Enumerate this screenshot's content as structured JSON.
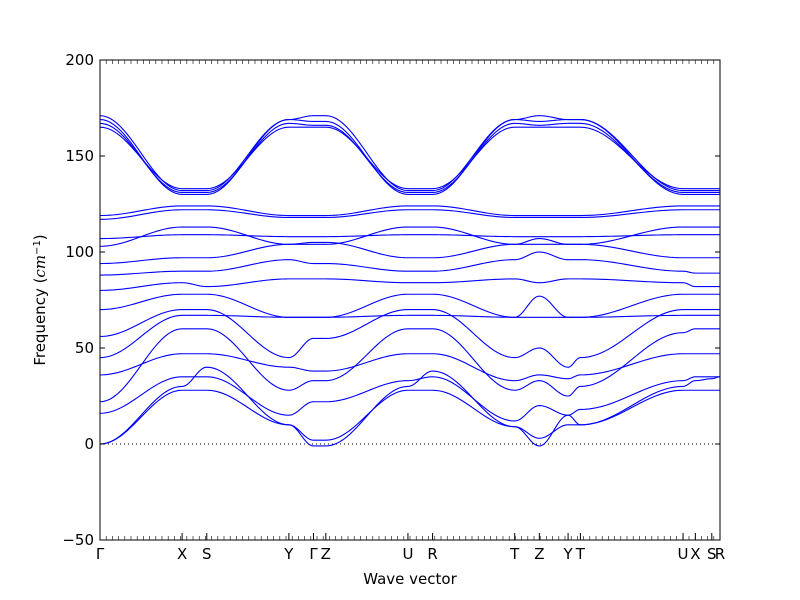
{
  "chart_data": {
    "type": "line",
    "title": "",
    "xlabel": "Wave vector",
    "ylabel_text": "Frequency (",
    "ylabel_unit": "cm",
    "ylabel_exp": "−1",
    "ylabel_close": ")",
    "ylim": [
      -50,
      200
    ],
    "yticks": [
      -50,
      0,
      50,
      100,
      150,
      200
    ],
    "ytick_labels": [
      "−50",
      "0",
      "50",
      "100",
      "150",
      "200"
    ],
    "xlim": [
      0,
      15.1
    ],
    "x_high_symmetry": [
      {
        "label": "Γ",
        "x": 0
      },
      {
        "label": "X",
        "x": 2.0
      },
      {
        "label": "S",
        "x": 2.6
      },
      {
        "label": "Y",
        "x": 4.6
      },
      {
        "label": "Γ",
        "x": 5.2
      },
      {
        "label": "Z",
        "x": 5.5
      },
      {
        "label": "U",
        "x": 7.5
      },
      {
        "label": "R",
        "x": 8.1
      },
      {
        "label": "T",
        "x": 10.1
      },
      {
        "label": "Z",
        "x": 10.7
      },
      {
        "label": "Y",
        "x": 11.4
      },
      {
        "label": "T",
        "x": 11.7
      },
      {
        "label": "U",
        "x": 14.2
      },
      {
        "label": "X",
        "x": 14.5
      },
      {
        "label": "S",
        "x": 14.9
      },
      {
        "label": "R",
        "x": 15.1
      }
    ],
    "zero_line": 0,
    "series_color": "#0000ff",
    "series": [
      {
        "x": [
          0,
          2.0,
          2.6,
          4.6,
          5.2,
          5.5,
          7.5,
          8.1,
          10.1,
          10.7,
          11.4,
          11.7,
          14.2,
          14.5,
          14.9,
          15.1
        ],
        "values": [
          0,
          30,
          40,
          10,
          -1,
          -1,
          30,
          38,
          9,
          -1,
          15,
          10,
          30,
          33,
          34,
          35
        ]
      },
      {
        "x": [
          0,
          2.0,
          2.6,
          4.6,
          5.2,
          5.5,
          7.5,
          8.1,
          10.1,
          10.7,
          11.4,
          11.7,
          14.2,
          14.5,
          14.9,
          15.1
        ],
        "values": [
          0,
          28,
          28,
          10,
          2,
          2,
          28,
          28,
          9,
          3,
          10,
          10,
          28,
          28,
          28,
          28
        ]
      },
      {
        "x": [
          0,
          2.0,
          2.6,
          4.6,
          5.2,
          5.5,
          7.5,
          8.1,
          10.1,
          10.7,
          11.4,
          11.7,
          14.2,
          14.5,
          14.9,
          15.1
        ],
        "values": [
          16,
          35,
          35,
          15,
          22,
          22,
          33,
          35,
          12,
          20,
          15,
          18,
          33,
          35,
          35,
          35
        ]
      },
      {
        "x": [
          0,
          2.0,
          2.6,
          4.6,
          5.2,
          5.5,
          7.5,
          8.1,
          10.1,
          10.7,
          11.4,
          11.7,
          14.2,
          14.5,
          14.9,
          15.1
        ],
        "values": [
          22,
          60,
          60,
          28,
          33,
          33,
          60,
          60,
          28,
          33,
          25,
          30,
          58,
          60,
          60,
          60
        ]
      },
      {
        "x": [
          0,
          2.0,
          2.6,
          4.6,
          5.2,
          5.5,
          7.5,
          8.1,
          10.1,
          10.7,
          11.4,
          11.7,
          14.2,
          14.5,
          14.9,
          15.1
        ],
        "values": [
          36,
          47,
          47,
          40,
          38,
          38,
          47,
          47,
          33,
          36,
          34,
          36,
          47,
          47,
          47,
          47
        ]
      },
      {
        "x": [
          0,
          2.0,
          2.6,
          4.6,
          5.2,
          5.5,
          7.5,
          8.1,
          10.1,
          10.7,
          11.4,
          11.7,
          14.2,
          14.5,
          14.9,
          15.1
        ],
        "values": [
          45,
          67,
          67,
          66,
          66,
          66,
          67,
          67,
          66,
          66,
          66,
          66,
          67,
          67,
          67,
          67
        ]
      },
      {
        "x": [
          0,
          2.0,
          2.6,
          4.6,
          5.2,
          5.5,
          7.5,
          8.1,
          10.1,
          10.7,
          11.4,
          11.7,
          14.2,
          14.5,
          14.9,
          15.1
        ],
        "values": [
          56,
          70,
          70,
          45,
          55,
          55,
          70,
          70,
          45,
          50,
          40,
          45,
          70,
          70,
          70,
          70
        ]
      },
      {
        "x": [
          0,
          2.0,
          2.6,
          4.6,
          5.2,
          5.5,
          7.5,
          8.1,
          10.1,
          10.7,
          11.4,
          11.7,
          14.2,
          14.5,
          14.9,
          15.1
        ],
        "values": [
          70,
          78,
          78,
          66,
          66,
          66,
          78,
          78,
          66,
          77,
          66,
          66,
          78,
          78,
          78,
          78
        ]
      },
      {
        "x": [
          0,
          2.0,
          2.6,
          4.6,
          5.2,
          5.5,
          7.5,
          8.1,
          10.1,
          10.7,
          11.4,
          11.7,
          14.2,
          14.5,
          14.9,
          15.1
        ],
        "values": [
          80,
          84,
          82,
          86,
          86,
          86,
          84,
          84,
          86,
          84,
          86,
          86,
          84,
          82,
          82,
          82
        ]
      },
      {
        "x": [
          0,
          2.0,
          2.6,
          4.6,
          5.2,
          5.5,
          7.5,
          8.1,
          10.1,
          10.7,
          11.4,
          11.7,
          14.2,
          14.5,
          14.9,
          15.1
        ],
        "values": [
          88,
          90,
          90,
          96,
          94,
          94,
          90,
          90,
          96,
          100,
          96,
          96,
          90,
          89,
          89,
          89
        ]
      },
      {
        "x": [
          0,
          2.0,
          2.6,
          4.6,
          5.2,
          5.5,
          7.5,
          8.1,
          10.1,
          10.7,
          11.4,
          11.7,
          14.2,
          14.5,
          14.9,
          15.1
        ],
        "values": [
          94,
          97,
          97,
          104,
          105,
          105,
          97,
          97,
          104,
          107,
          104,
          104,
          97,
          97,
          97,
          97
        ]
      },
      {
        "x": [
          0,
          2.0,
          2.6,
          4.6,
          5.2,
          5.5,
          7.5,
          8.1,
          10.1,
          10.7,
          11.4,
          11.7,
          14.2,
          14.5,
          14.9,
          15.1
        ],
        "values": [
          103,
          113,
          113,
          104,
          104,
          104,
          113,
          113,
          104,
          104,
          104,
          104,
          113,
          113,
          113,
          113
        ]
      },
      {
        "x": [
          0,
          2.0,
          2.6,
          4.6,
          5.2,
          5.5,
          7.5,
          8.1,
          10.1,
          10.7,
          11.4,
          11.7,
          14.2,
          14.5,
          14.9,
          15.1
        ],
        "values": [
          107,
          109,
          109,
          108,
          108,
          108,
          109,
          109,
          108,
          108,
          108,
          108,
          109,
          109,
          109,
          109
        ]
      },
      {
        "x": [
          0,
          2.0,
          2.6,
          4.6,
          5.2,
          5.5,
          7.5,
          8.1,
          10.1,
          10.7,
          11.4,
          11.7,
          14.2,
          14.5,
          14.9,
          15.1
        ],
        "values": [
          117,
          122,
          122,
          118,
          118,
          118,
          122,
          122,
          118,
          118,
          118,
          118,
          122,
          122,
          122,
          122
        ]
      },
      {
        "x": [
          0,
          2.0,
          2.6,
          4.6,
          5.2,
          5.5,
          7.5,
          8.1,
          10.1,
          10.7,
          11.4,
          11.7,
          14.2,
          14.5,
          14.9,
          15.1
        ],
        "values": [
          119,
          124,
          124,
          119,
          119,
          119,
          124,
          124,
          119,
          119,
          119,
          119,
          124,
          124,
          124,
          124
        ]
      },
      {
        "x": [
          0,
          2.0,
          2.6,
          4.6,
          5.2,
          5.5,
          7.5,
          8.1,
          10.1,
          10.7,
          11.4,
          11.7,
          14.2,
          14.5,
          14.9,
          15.1
        ],
        "values": [
          165,
          133,
          133,
          165,
          165,
          165,
          133,
          133,
          165,
          165,
          165,
          165,
          133,
          133,
          133,
          133
        ]
      },
      {
        "x": [
          0,
          2.0,
          2.6,
          4.6,
          5.2,
          5.5,
          7.5,
          8.1,
          10.1,
          10.7,
          11.4,
          11.7,
          14.2,
          14.5,
          14.9,
          15.1
        ],
        "values": [
          167,
          131,
          131,
          167,
          166,
          166,
          131,
          131,
          167,
          166,
          167,
          167,
          131,
          131,
          131,
          131
        ]
      },
      {
        "x": [
          0,
          2.0,
          2.6,
          4.6,
          5.2,
          5.5,
          7.5,
          8.1,
          10.1,
          10.7,
          11.4,
          11.7,
          14.2,
          14.5,
          14.9,
          15.1
        ],
        "values": [
          169,
          130,
          130,
          169,
          168,
          168,
          130,
          130,
          169,
          168,
          169,
          169,
          130,
          130,
          130,
          130
        ]
      },
      {
        "x": [
          0,
          2.0,
          2.6,
          4.6,
          5.2,
          5.5,
          7.5,
          8.1,
          10.1,
          10.7,
          11.4,
          11.7,
          14.2,
          14.5,
          14.9,
          15.1
        ],
        "values": [
          171,
          132,
          132,
          169,
          171,
          171,
          132,
          132,
          169,
          171,
          169,
          169,
          132,
          132,
          132,
          132
        ]
      }
    ]
  }
}
